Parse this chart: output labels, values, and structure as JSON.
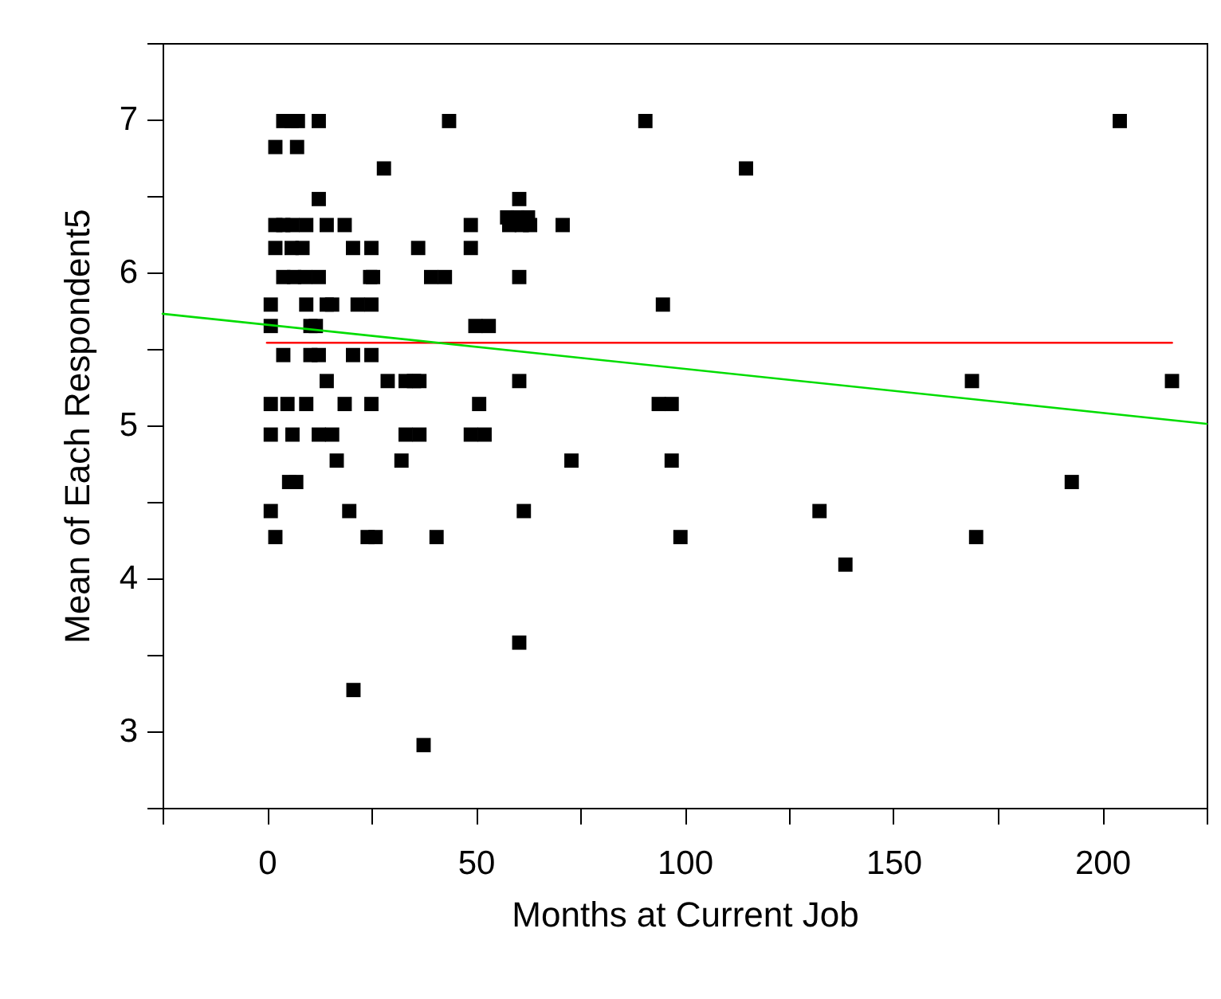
{
  "chart_data": {
    "type": "scatter",
    "xlabel": "Months at Current Job",
    "ylabel": "Mean of Each Respondent5",
    "xlim": [
      -25,
      225
    ],
    "ylim": [
      2.5,
      7.5
    ],
    "xticks": [
      {
        "value": -25,
        "label": null
      },
      0,
      {
        "value": 25,
        "label": null
      },
      50,
      {
        "value": 75,
        "label": null
      },
      100,
      {
        "value": 125,
        "label": null
      },
      150,
      {
        "value": 175,
        "label": null
      },
      200,
      {
        "value": 225,
        "label": null
      }
    ],
    "yticks": [
      {
        "value": 2.5,
        "label": null
      },
      3,
      {
        "value": 3.5,
        "label": null
      },
      4,
      {
        "value": 4.5,
        "label": null
      },
      5,
      {
        "value": 5.5,
        "label": null
      },
      6,
      {
        "value": 6.5,
        "label": null
      },
      7,
      {
        "value": 7.5,
        "label": null
      }
    ],
    "grid": false,
    "series": [
      {
        "marker": "square",
        "color": "#000000",
        "x": [
          3.9,
          5.9,
          7.4,
          12.4,
          43.6,
          90.6,
          204.2,
          2.0,
          7.2,
          28.0,
          114.7,
          12.4,
          60.4,
          57.5,
          60,
          62.5,
          2.0,
          3.9,
          6.1,
          9.4,
          14.3,
          18.6,
          48.8,
          70.8,
          58,
          61,
          63,
          2.0,
          5.9,
          8.5,
          20.6,
          25.0,
          36.2,
          48.8,
          3.9,
          6.5,
          9.1,
          12.4,
          24.7,
          25.4,
          39.3,
          42.6,
          60.4,
          0.9,
          9.4,
          14.3,
          15.6,
          21.7,
          25.0,
          94.8,
          0.9,
          10.4,
          11.7,
          49.9,
          53.1,
          3.9,
          10.4,
          12.4,
          20.6,
          25.0,
          14.3,
          28.9,
          33.2,
          35.2,
          36.5,
          60.4,
          168.8,
          216.7,
          0.9,
          4.9,
          9.4,
          18.6,
          25.0,
          50.8,
          93.8,
          96.9,
          0.9,
          6.1,
          12.4,
          15.6,
          33.2,
          36.5,
          48.8,
          52.1,
          16.7,
          32.2,
          72.9,
          96.9,
          5.3,
          7.0,
          192.7,
          0.9,
          19.7,
          61.5,
          132.3,
          2.0,
          24.1,
          26.0,
          40.6,
          99.0,
          169.8,
          138.5,
          60.4,
          20.7,
          37.5
        ],
        "values": [
          6.99,
          6.99,
          6.99,
          6.99,
          6.99,
          6.99,
          6.99,
          6.82,
          6.82,
          6.68,
          6.68,
          6.48,
          6.48,
          6.36,
          6.36,
          6.36,
          6.31,
          6.31,
          6.31,
          6.31,
          6.31,
          6.31,
          6.31,
          6.31,
          6.31,
          6.31,
          6.31,
          6.16,
          6.16,
          6.16,
          6.16,
          6.16,
          6.16,
          6.16,
          5.97,
          5.97,
          5.97,
          5.97,
          5.97,
          5.97,
          5.97,
          5.97,
          5.97,
          5.79,
          5.79,
          5.79,
          5.79,
          5.79,
          5.79,
          5.79,
          5.65,
          5.65,
          5.65,
          5.65,
          5.65,
          5.46,
          5.46,
          5.46,
          5.46,
          5.46,
          5.29,
          5.29,
          5.29,
          5.29,
          5.29,
          5.29,
          5.29,
          5.29,
          5.14,
          5.14,
          5.14,
          5.14,
          5.14,
          5.14,
          5.14,
          5.14,
          4.94,
          4.94,
          4.94,
          4.94,
          4.94,
          4.94,
          4.94,
          4.94,
          4.77,
          4.77,
          4.77,
          4.77,
          4.63,
          4.63,
          4.63,
          4.44,
          4.44,
          4.44,
          4.44,
          4.27,
          4.27,
          4.27,
          4.27,
          4.27,
          4.27,
          4.09,
          3.58,
          3.27,
          2.91
        ]
      },
      {
        "type": "line",
        "color": "#ff0000",
        "x": [
          0,
          216.7
        ],
        "values": [
          5.54,
          5.54
        ]
      },
      {
        "type": "line",
        "color": "#00dd00",
        "x": [
          -25,
          225
        ],
        "values": [
          5.73,
          5.01
        ]
      }
    ]
  }
}
